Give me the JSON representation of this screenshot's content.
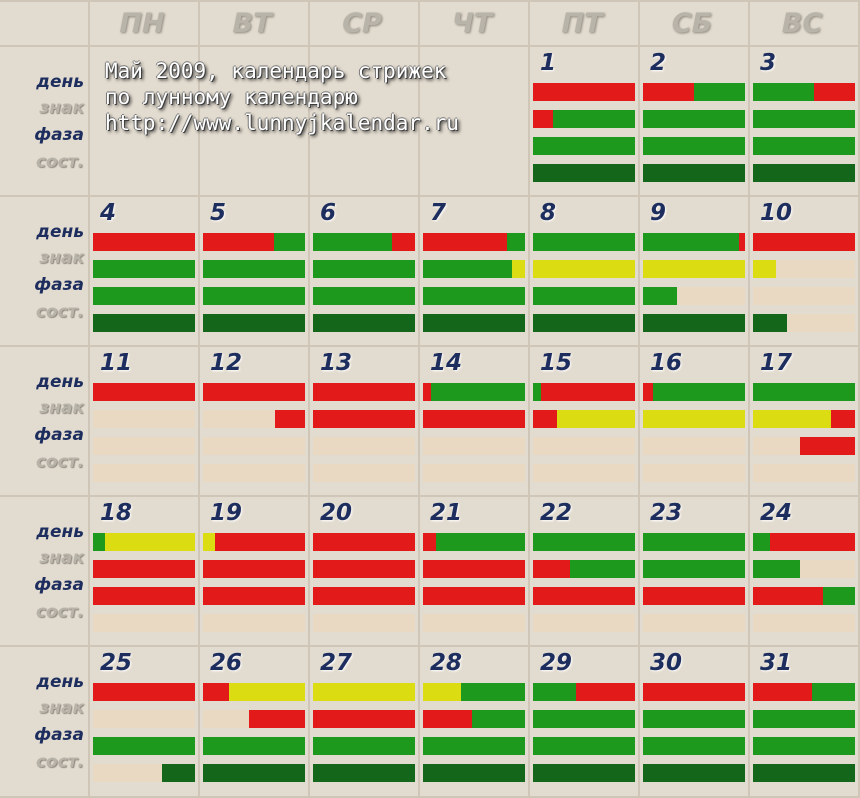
{
  "title_lines": [
    "Май 2009, календарь стрижек",
    "по лунному календарю",
    "http://www.lunnyjkalendar.ru"
  ],
  "weekdays": [
    "ПН",
    "ВТ",
    "СР",
    "ЧТ",
    "ПТ",
    "СБ",
    "ВС"
  ],
  "row_labels": {
    "day": "день",
    "sign": "знак",
    "phase": "фаза",
    "state": "сост."
  },
  "colors": {
    "R": "#e31a1a",
    "G": "#1d9a1d",
    "Y": "#dcdc12",
    "E": "#e9d9c2",
    "D": "#13661a",
    "background": "#e2dbcf",
    "title_text": "#1c2d5e"
  },
  "first_weekday_index": 4,
  "days": [
    {
      "d": "1",
      "bars": [
        [
          [
            "R",
            1
          ]
        ],
        [
          [
            "R",
            0.2
          ],
          [
            "G",
            0.8
          ]
        ],
        [
          [
            "G",
            1
          ]
        ],
        [
          [
            "D",
            1
          ]
        ]
      ]
    },
    {
      "d": "2",
      "bars": [
        [
          [
            "R",
            0.5
          ],
          [
            "G",
            0.5
          ]
        ],
        [
          [
            "G",
            1
          ]
        ],
        [
          [
            "G",
            1
          ]
        ],
        [
          [
            "D",
            1
          ]
        ]
      ]
    },
    {
      "d": "3",
      "bars": [
        [
          [
            "G",
            0.6
          ],
          [
            "R",
            0.4
          ]
        ],
        [
          [
            "G",
            1
          ]
        ],
        [
          [
            "G",
            1
          ]
        ],
        [
          [
            "D",
            1
          ]
        ]
      ]
    },
    {
      "d": "4",
      "bars": [
        [
          [
            "R",
            1
          ]
        ],
        [
          [
            "G",
            1
          ]
        ],
        [
          [
            "G",
            1
          ]
        ],
        [
          [
            "D",
            1
          ]
        ]
      ]
    },
    {
      "d": "5",
      "bars": [
        [
          [
            "R",
            0.7
          ],
          [
            "G",
            0.3
          ]
        ],
        [
          [
            "G",
            1
          ]
        ],
        [
          [
            "G",
            1
          ]
        ],
        [
          [
            "D",
            1
          ]
        ]
      ]
    },
    {
      "d": "6",
      "bars": [
        [
          [
            "G",
            0.77
          ],
          [
            "R",
            0.23
          ]
        ],
        [
          [
            "G",
            1
          ]
        ],
        [
          [
            "G",
            1
          ]
        ],
        [
          [
            "D",
            1
          ]
        ]
      ]
    },
    {
      "d": "7",
      "bars": [
        [
          [
            "R",
            0.82
          ],
          [
            "G",
            0.18
          ]
        ],
        [
          [
            "G",
            0.87
          ],
          [
            "Y",
            0.13
          ]
        ],
        [
          [
            "G",
            1
          ]
        ],
        [
          [
            "D",
            1
          ]
        ]
      ]
    },
    {
      "d": "8",
      "bars": [
        [
          [
            "G",
            1
          ]
        ],
        [
          [
            "Y",
            1
          ]
        ],
        [
          [
            "G",
            1
          ]
        ],
        [
          [
            "D",
            1
          ]
        ]
      ]
    },
    {
      "d": "9",
      "bars": [
        [
          [
            "G",
            0.94
          ],
          [
            "R",
            0.06
          ]
        ],
        [
          [
            "Y",
            1
          ]
        ],
        [
          [
            "G",
            0.33
          ],
          [
            "E",
            0.67
          ]
        ],
        [
          [
            "D",
            1
          ]
        ]
      ]
    },
    {
      "d": "10",
      "bars": [
        [
          [
            "R",
            1
          ]
        ],
        [
          [
            "Y",
            0.23
          ],
          [
            "E",
            0.77
          ]
        ],
        [
          [
            "E",
            1
          ]
        ],
        [
          [
            "D",
            0.33
          ],
          [
            "E",
            0.67
          ]
        ]
      ]
    },
    {
      "d": "11",
      "bars": [
        [
          [
            "R",
            1
          ]
        ],
        [
          [
            "E",
            1
          ]
        ],
        [
          [
            "E",
            1
          ]
        ],
        [
          [
            "E",
            1
          ]
        ]
      ]
    },
    {
      "d": "12",
      "bars": [
        [
          [
            "R",
            1
          ]
        ],
        [
          [
            "E",
            0.71
          ],
          [
            "R",
            0.29
          ]
        ],
        [
          [
            "E",
            1
          ]
        ],
        [
          [
            "E",
            1
          ]
        ]
      ]
    },
    {
      "d": "13",
      "bars": [
        [
          [
            "R",
            1
          ]
        ],
        [
          [
            "R",
            1
          ]
        ],
        [
          [
            "E",
            1
          ]
        ],
        [
          [
            "E",
            1
          ]
        ]
      ]
    },
    {
      "d": "14",
      "bars": [
        [
          [
            "R",
            0.08
          ],
          [
            "G",
            0.92
          ]
        ],
        [
          [
            "R",
            1
          ]
        ],
        [
          [
            "E",
            1
          ]
        ],
        [
          [
            "E",
            1
          ]
        ]
      ]
    },
    {
      "d": "15",
      "bars": [
        [
          [
            "G",
            0.08
          ],
          [
            "R",
            0.92
          ]
        ],
        [
          [
            "R",
            0.24
          ],
          [
            "Y",
            0.76
          ]
        ],
        [
          [
            "E",
            1
          ]
        ],
        [
          [
            "E",
            1
          ]
        ]
      ]
    },
    {
      "d": "16",
      "bars": [
        [
          [
            "R",
            0.1
          ],
          [
            "G",
            0.9
          ]
        ],
        [
          [
            "Y",
            1
          ]
        ],
        [
          [
            "E",
            1
          ]
        ],
        [
          [
            "E",
            1
          ]
        ]
      ]
    },
    {
      "d": "17",
      "bars": [
        [
          [
            "G",
            1
          ]
        ],
        [
          [
            "Y",
            0.76
          ],
          [
            "R",
            0.24
          ]
        ],
        [
          [
            "E",
            0.46
          ],
          [
            "R",
            0.54
          ]
        ],
        [
          [
            "E",
            1
          ]
        ]
      ]
    },
    {
      "d": "18",
      "bars": [
        [
          [
            "G",
            0.12
          ],
          [
            "Y",
            0.88
          ]
        ],
        [
          [
            "R",
            1
          ]
        ],
        [
          [
            "R",
            1
          ]
        ],
        [
          [
            "E",
            1
          ]
        ]
      ]
    },
    {
      "d": "19",
      "bars": [
        [
          [
            "Y",
            0.12
          ],
          [
            "R",
            0.88
          ]
        ],
        [
          [
            "R",
            1
          ]
        ],
        [
          [
            "R",
            1
          ]
        ],
        [
          [
            "E",
            1
          ]
        ]
      ]
    },
    {
      "d": "20",
      "bars": [
        [
          [
            "R",
            1
          ]
        ],
        [
          [
            "R",
            1
          ]
        ],
        [
          [
            "R",
            1
          ]
        ],
        [
          [
            "E",
            1
          ]
        ]
      ]
    },
    {
      "d": "21",
      "bars": [
        [
          [
            "R",
            0.13
          ],
          [
            "G",
            0.87
          ]
        ],
        [
          [
            "R",
            1
          ]
        ],
        [
          [
            "R",
            1
          ]
        ],
        [
          [
            "E",
            1
          ]
        ]
      ]
    },
    {
      "d": "22",
      "bars": [
        [
          [
            "G",
            1
          ]
        ],
        [
          [
            "R",
            0.36
          ],
          [
            "G",
            0.64
          ]
        ],
        [
          [
            "R",
            1
          ]
        ],
        [
          [
            "E",
            1
          ]
        ]
      ]
    },
    {
      "d": "23",
      "bars": [
        [
          [
            "G",
            1
          ]
        ],
        [
          [
            "G",
            1
          ]
        ],
        [
          [
            "R",
            1
          ]
        ],
        [
          [
            "E",
            1
          ]
        ]
      ]
    },
    {
      "d": "24",
      "bars": [
        [
          [
            "G",
            0.17
          ],
          [
            "R",
            0.83
          ]
        ],
        [
          [
            "G",
            0.46
          ],
          [
            "E",
            0.54
          ]
        ],
        [
          [
            "R",
            0.69
          ],
          [
            "G",
            0.31
          ]
        ],
        [
          [
            "E",
            1
          ]
        ]
      ]
    },
    {
      "d": "25",
      "bars": [
        [
          [
            "R",
            1
          ]
        ],
        [
          [
            "E",
            1
          ]
        ],
        [
          [
            "G",
            1
          ]
        ],
        [
          [
            "E",
            0.68
          ],
          [
            "D",
            0.32
          ]
        ]
      ]
    },
    {
      "d": "26",
      "bars": [
        [
          [
            "R",
            0.25
          ],
          [
            "Y",
            0.75
          ]
        ],
        [
          [
            "E",
            0.45
          ],
          [
            "R",
            0.55
          ]
        ],
        [
          [
            "G",
            1
          ]
        ],
        [
          [
            "D",
            1
          ]
        ]
      ]
    },
    {
      "d": "27",
      "bars": [
        [
          [
            "Y",
            1
          ]
        ],
        [
          [
            "R",
            1
          ]
        ],
        [
          [
            "G",
            1
          ]
        ],
        [
          [
            "D",
            1
          ]
        ]
      ]
    },
    {
      "d": "28",
      "bars": [
        [
          [
            "Y",
            0.37
          ],
          [
            "G",
            0.63
          ]
        ],
        [
          [
            "R",
            0.48
          ],
          [
            "G",
            0.52
          ]
        ],
        [
          [
            "G",
            1
          ]
        ],
        [
          [
            "D",
            1
          ]
        ]
      ]
    },
    {
      "d": "29",
      "bars": [
        [
          [
            "G",
            0.42
          ],
          [
            "R",
            0.58
          ]
        ],
        [
          [
            "G",
            1
          ]
        ],
        [
          [
            "G",
            1
          ]
        ],
        [
          [
            "D",
            1
          ]
        ]
      ]
    },
    {
      "d": "30",
      "bars": [
        [
          [
            "R",
            1
          ]
        ],
        [
          [
            "G",
            1
          ]
        ],
        [
          [
            "G",
            1
          ]
        ],
        [
          [
            "D",
            1
          ]
        ]
      ]
    },
    {
      "d": "31",
      "bars": [
        [
          [
            "R",
            0.58
          ],
          [
            "G",
            0.42
          ]
        ],
        [
          [
            "G",
            1
          ]
        ],
        [
          [
            "G",
            1
          ]
        ],
        [
          [
            "D",
            1
          ]
        ]
      ]
    }
  ]
}
